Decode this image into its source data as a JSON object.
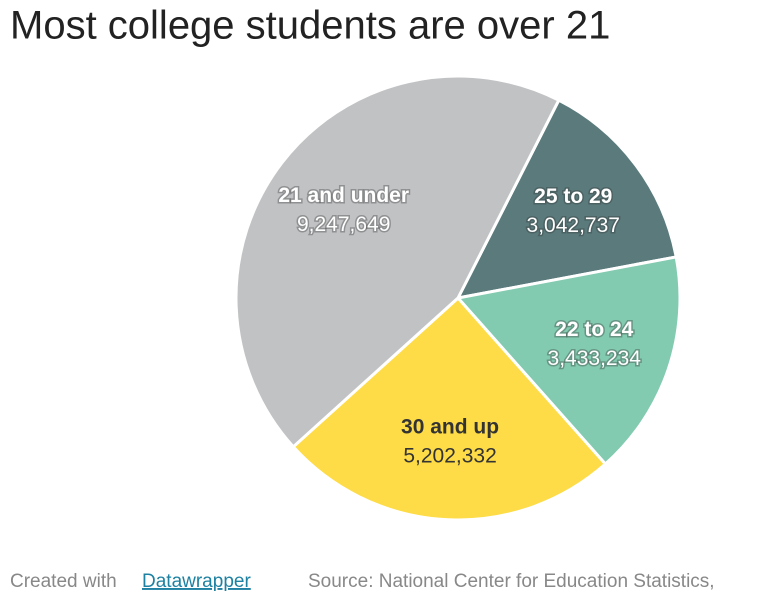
{
  "chart_data": {
    "type": "pie",
    "title": "Most college students are over 21",
    "categories": [
      "25 to 29",
      "22 to 24",
      "30 and up",
      "21 and under"
    ],
    "values": [
      3042737,
      3433234,
      5202332,
      9247649
    ],
    "value_labels": [
      "3,042,737",
      "3,433,234",
      "5,202,332",
      "9,247,649"
    ],
    "colors": [
      "#5a7a7c",
      "#82cab0",
      "#fddc47",
      "#c1c2c4"
    ],
    "label_colors": [
      "#ffffff",
      "#ffffff",
      "#333333",
      "#ffffff"
    ]
  },
  "footer": {
    "credit_prefix": "Created with",
    "credit_link": "Datawrapper",
    "source": "Source: National Center for Education Statistics,"
  }
}
